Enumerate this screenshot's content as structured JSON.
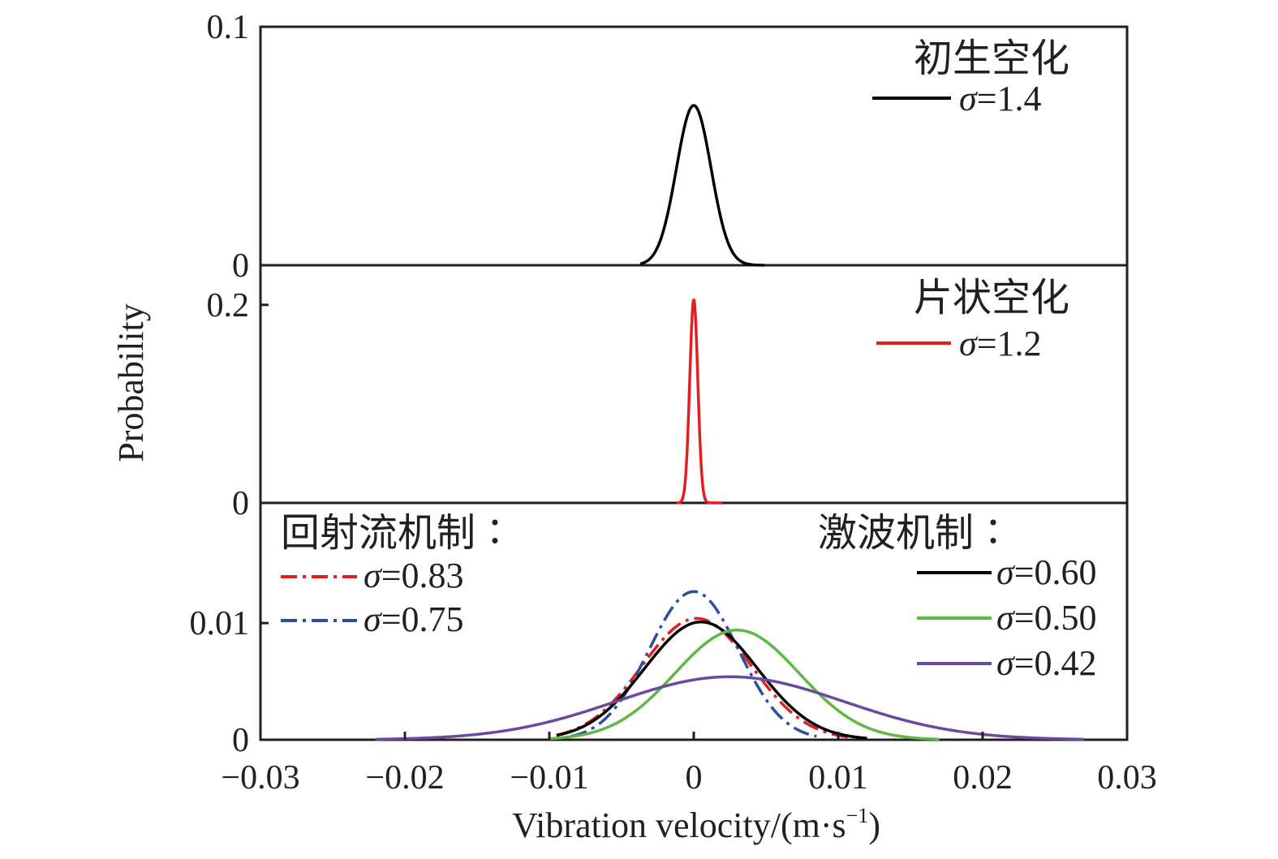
{
  "chart_data": {
    "type": "line",
    "xlabel": "Vibration velocity/(m·s",
    "xlabel_sup": "−1",
    "xlabel_close": ")",
    "ylabel": "Probability",
    "x_ticks": [
      "−0.03",
      "−0.02",
      "−0.01",
      "0",
      "0.01",
      "0.02",
      "0.03"
    ],
    "xlim": [
      -0.03,
      0.03
    ],
    "panels": [
      {
        "id": "top",
        "title": "初生空化",
        "ylim": [
          0,
          0.1
        ],
        "y_ticks": [
          {
            "value": 0,
            "label": "0"
          },
          {
            "value": 0.1,
            "label": "0.1"
          }
        ],
        "series": [
          {
            "name": "σ=1.4",
            "sigma_label": "σ",
            "value_label": "=1.4",
            "color": "#000000",
            "dash": "solid",
            "mu": 0,
            "sd": 0.0012,
            "peak": 0.067,
            "x_min": -0.0037,
            "x_max": 0.0049
          }
        ]
      },
      {
        "id": "middle",
        "title": "片状空化",
        "ylim": [
          0,
          0.24
        ],
        "y_ticks": [
          {
            "value": 0,
            "label": "0"
          },
          {
            "value": 0.2,
            "label": "0.2"
          }
        ],
        "series": [
          {
            "name": "σ=1.2",
            "sigma_label": "σ",
            "value_label": "=1.2",
            "color": "#e02020",
            "dash": "solid",
            "mu": 0,
            "sd": 0.00028,
            "peak": 0.205,
            "x_min": -0.0012,
            "x_max": 0.002
          }
        ]
      },
      {
        "id": "bottom",
        "ylim": [
          0,
          0.0203
        ],
        "y_ticks": [
          {
            "value": 0,
            "label": "0"
          },
          {
            "value": 0.01,
            "label": "0.01"
          }
        ],
        "group_left": "回射流机制∶",
        "group_right": "激波机制∶",
        "series": [
          {
            "name": "σ=0.83",
            "sigma_label": "σ",
            "value_label": "=0.83",
            "group": "回射流机制",
            "color": "#e02020",
            "dash": "dashdot",
            "mu": 0.0002,
            "sd": 0.0038,
            "peak": 0.0104,
            "x_min": -0.0095,
            "x_max": 0.011
          },
          {
            "name": "σ=0.75",
            "sigma_label": "σ",
            "value_label": "=0.75",
            "group": "回射流机制",
            "color": "#2e4f9e",
            "dash": "dashdot",
            "mu": 0,
            "sd": 0.0031,
            "peak": 0.0127,
            "x_min": -0.0085,
            "x_max": 0.0085
          },
          {
            "name": "σ=0.60",
            "sigma_label": "σ",
            "value_label": "=0.60",
            "group": "激波机制",
            "color": "#000000",
            "dash": "solid",
            "mu": 0.0005,
            "sd": 0.0039,
            "peak": 0.0101,
            "x_min": -0.0095,
            "x_max": 0.012
          },
          {
            "name": "σ=0.50",
            "sigma_label": "σ",
            "value_label": "=0.50",
            "group": "激波机制",
            "color": "#5fb846",
            "dash": "solid",
            "mu": 0.003,
            "sd": 0.0043,
            "peak": 0.0094,
            "x_min": -0.01,
            "x_max": 0.017
          },
          {
            "name": "σ=0.42",
            "sigma_label": "σ",
            "value_label": "=0.42",
            "group": "激波机制",
            "color": "#6a4aa0",
            "dash": "solid",
            "mu": 0.0025,
            "sd": 0.0079,
            "peak": 0.0054,
            "x_min": -0.022,
            "x_max": 0.027
          }
        ]
      }
    ]
  }
}
